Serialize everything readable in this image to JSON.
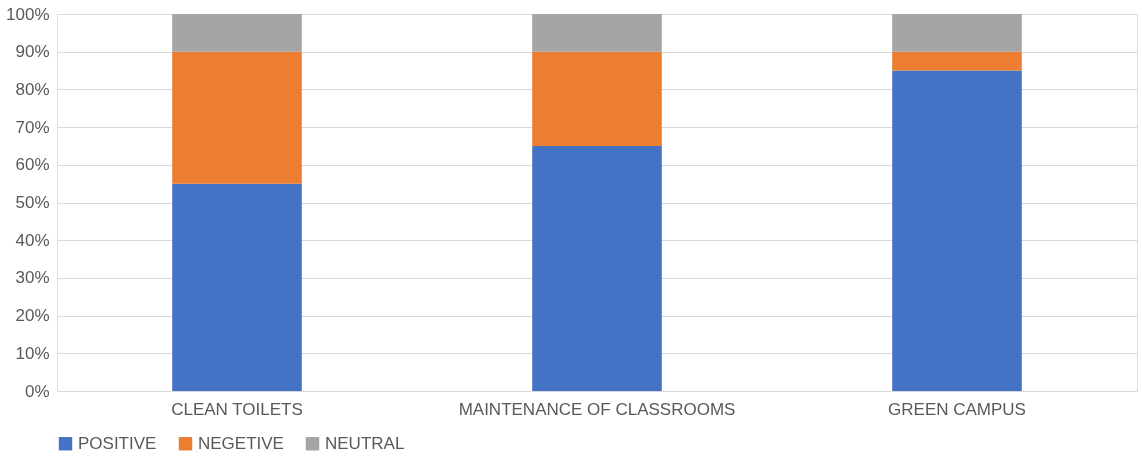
{
  "chart_data": {
    "type": "bar",
    "stacked": true,
    "categories": [
      "CLEAN TOILETS",
      "MAINTENANCE OF CLASSROOMS",
      "GREEN CAMPUS"
    ],
    "series": [
      {
        "name": "POSITIVE",
        "color": "#4472c4",
        "values": [
          55,
          65,
          85
        ]
      },
      {
        "name": "NEGETIVE",
        "color": "#ed7d31",
        "values": [
          35,
          25,
          5
        ]
      },
      {
        "name": "NEUTRAL",
        "color": "#a5a5a5",
        "values": [
          10,
          10,
          10
        ]
      }
    ],
    "ylim": [
      0,
      100
    ],
    "yticks": [
      {
        "value": 0,
        "label": "0%"
      },
      {
        "value": 10,
        "label": "10%"
      },
      {
        "value": 20,
        "label": "20%"
      },
      {
        "value": 30,
        "label": "30%"
      },
      {
        "value": 40,
        "label": "40%"
      },
      {
        "value": 50,
        "label": "50%"
      },
      {
        "value": 60,
        "label": "60%"
      },
      {
        "value": 70,
        "label": "70%"
      },
      {
        "value": 80,
        "label": "80%"
      },
      {
        "value": 90,
        "label": "90%"
      },
      {
        "value": 100,
        "label": "100%"
      }
    ],
    "grid": "y",
    "legend": "bottom"
  }
}
